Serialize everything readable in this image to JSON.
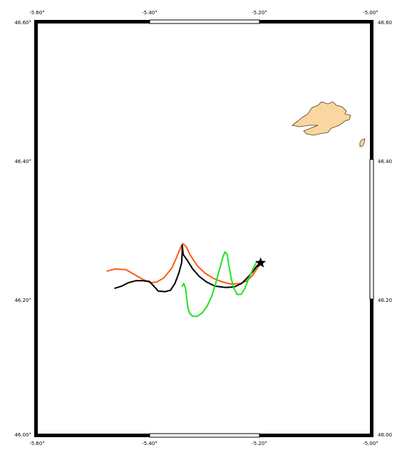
{
  "map": {
    "top_ticks": [
      "-5.60°",
      "-5.40°",
      "-5.20°",
      "-5.00°"
    ],
    "bottom_ticks": [
      "-5.60°",
      "-5.40°",
      "-5.20°",
      "-5.00°"
    ],
    "left_ticks": [
      "46.60°",
      "46.40°",
      "46.20°",
      "46.00°"
    ],
    "right_ticks": [
      "46.60",
      "46.40",
      "46.20",
      "46.00"
    ],
    "lon_range": [
      -5.6,
      -5.0
    ],
    "lat_range": [
      46.0,
      46.6
    ]
  },
  "tracks": [
    {
      "id": "orange",
      "color": "#ff5a14",
      "points": [
        [
          -5.474,
          46.238
        ],
        [
          -5.46,
          46.241
        ],
        [
          -5.44,
          46.24
        ],
        [
          -5.425,
          46.233
        ],
        [
          -5.41,
          46.226
        ],
        [
          -5.396,
          46.221
        ],
        [
          -5.385,
          46.222
        ],
        [
          -5.372,
          46.228
        ],
        [
          -5.358,
          46.242
        ],
        [
          -5.349,
          46.258
        ],
        [
          -5.342,
          46.272
        ],
        [
          -5.338,
          46.278
        ],
        [
          -5.332,
          46.274
        ],
        [
          -5.325,
          46.262
        ],
        [
          -5.312,
          46.246
        ],
        [
          -5.298,
          46.235
        ],
        [
          -5.282,
          46.227
        ],
        [
          -5.266,
          46.222
        ],
        [
          -5.25,
          46.219
        ],
        [
          -5.234,
          46.22
        ],
        [
          -5.222,
          46.224
        ],
        [
          -5.212,
          46.232
        ],
        [
          -5.204,
          46.242
        ],
        [
          -5.198,
          46.25
        ]
      ]
    },
    {
      "id": "black",
      "color": "#000000",
      "points": [
        [
          -5.46,
          46.213
        ],
        [
          -5.448,
          46.216
        ],
        [
          -5.436,
          46.221
        ],
        [
          -5.422,
          46.224
        ],
        [
          -5.41,
          46.224
        ],
        [
          -5.398,
          46.223
        ],
        [
          -5.39,
          46.216
        ],
        [
          -5.382,
          46.209
        ],
        [
          -5.37,
          46.208
        ],
        [
          -5.36,
          46.21
        ],
        [
          -5.352,
          46.22
        ],
        [
          -5.345,
          46.235
        ],
        [
          -5.34,
          46.25
        ],
        [
          -5.339,
          46.265
        ],
        [
          -5.339,
          46.276
        ],
        [
          -5.337,
          46.262
        ],
        [
          -5.33,
          46.254
        ],
        [
          -5.32,
          46.241
        ],
        [
          -5.308,
          46.23
        ],
        [
          -5.295,
          46.222
        ],
        [
          -5.28,
          46.216
        ],
        [
          -5.26,
          46.214
        ],
        [
          -5.245,
          46.215
        ],
        [
          -5.232,
          46.22
        ],
        [
          -5.222,
          46.228
        ],
        [
          -5.212,
          46.237
        ],
        [
          -5.204,
          46.246
        ],
        [
          -5.198,
          46.25
        ]
      ]
    },
    {
      "id": "green",
      "color": "#1ee31e",
      "points": [
        [
          -5.339,
          46.216
        ],
        [
          -5.336,
          46.22
        ],
        [
          -5.333,
          46.213
        ],
        [
          -5.331,
          46.2
        ],
        [
          -5.329,
          46.186
        ],
        [
          -5.326,
          46.177
        ],
        [
          -5.32,
          46.172
        ],
        [
          -5.312,
          46.172
        ],
        [
          -5.303,
          46.177
        ],
        [
          -5.294,
          46.187
        ],
        [
          -5.286,
          46.201
        ],
        [
          -5.279,
          46.219
        ],
        [
          -5.272,
          46.24
        ],
        [
          -5.266,
          46.258
        ],
        [
          -5.262,
          46.266
        ],
        [
          -5.258,
          46.262
        ],
        [
          -5.255,
          46.247
        ],
        [
          -5.251,
          46.228
        ],
        [
          -5.246,
          46.213
        ],
        [
          -5.24,
          46.204
        ],
        [
          -5.233,
          46.204
        ],
        [
          -5.226,
          46.213
        ],
        [
          -5.219,
          46.228
        ],
        [
          -5.211,
          46.242
        ],
        [
          -5.206,
          46.25
        ]
      ]
    }
  ],
  "release_point": {
    "lon": -5.198,
    "lat": 46.25
  },
  "island_color": "#fad7a0"
}
